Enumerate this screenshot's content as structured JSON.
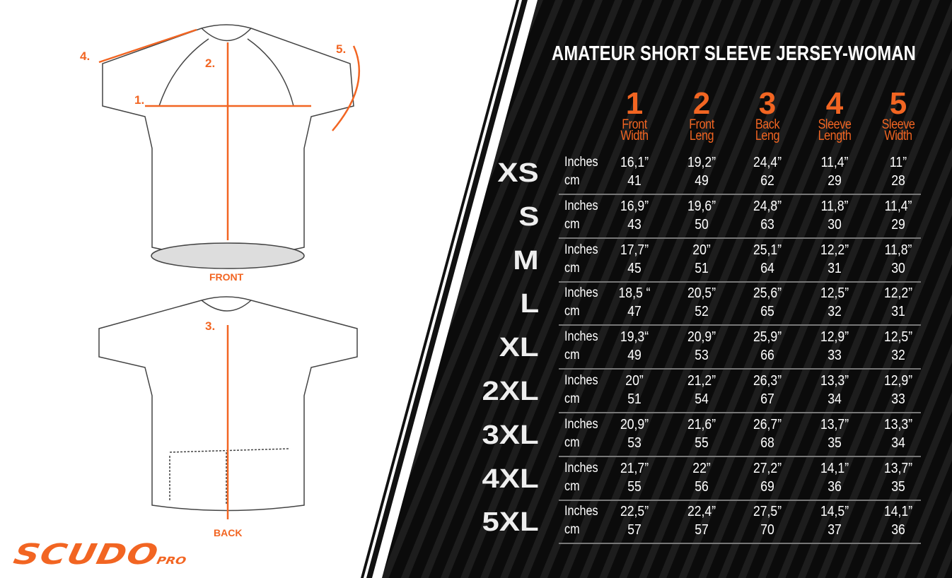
{
  "title": "AMATEUR SHORT SLEEVE JERSEY-WOMAN",
  "brand": {
    "name": "SCUDO",
    "suffix": "PRO"
  },
  "colors": {
    "accent": "#f26522",
    "panel": "#0b0b0b"
  },
  "diagram": {
    "front_label": "FRONT",
    "back_label": "BACK",
    "markers": [
      "1.",
      "2.",
      "3.",
      "4.",
      "5."
    ]
  },
  "columns": [
    {
      "num": "1",
      "label1": "Front",
      "label2": "Width"
    },
    {
      "num": "2",
      "label1": "Front",
      "label2": "Leng"
    },
    {
      "num": "3",
      "label1": "Back",
      "label2": "Leng"
    },
    {
      "num": "4",
      "label1": "Sleeve",
      "label2": "Length"
    },
    {
      "num": "5",
      "label1": "Sleeve",
      "label2": "Width"
    }
  ],
  "units": {
    "inches": "Inches",
    "cm": "cm"
  },
  "rows": [
    {
      "size": "XS",
      "inches": [
        "16,1”",
        "19,2”",
        "24,4”",
        "11,4”",
        "11”"
      ],
      "cm": [
        "41",
        "49",
        "62",
        "29",
        "28"
      ]
    },
    {
      "size": "S",
      "inches": [
        "16,9”",
        "19,6”",
        "24,8”",
        "11,8”",
        "11,4”"
      ],
      "cm": [
        "43",
        "50",
        "63",
        "30",
        "29"
      ]
    },
    {
      "size": "M",
      "inches": [
        "17,7”",
        "20”",
        "25,1”",
        "12,2”",
        "11,8”"
      ],
      "cm": [
        "45",
        "51",
        "64",
        "31",
        "30"
      ]
    },
    {
      "size": "L",
      "inches": [
        "18,5 “",
        "20,5”",
        "25,6”",
        "12,5”",
        "12,2”"
      ],
      "cm": [
        "47",
        "52",
        "65",
        "32",
        "31"
      ]
    },
    {
      "size": "XL",
      "inches": [
        "19,3“",
        "20,9”",
        "25,9”",
        "12,9”",
        "12,5”"
      ],
      "cm": [
        "49",
        "53",
        "66",
        "33",
        "32"
      ]
    },
    {
      "size": "2XL",
      "inches": [
        "20”",
        "21,2”",
        "26,3”",
        "13,3”",
        "12,9”"
      ],
      "cm": [
        "51",
        "54",
        "67",
        "34",
        "33"
      ]
    },
    {
      "size": "3XL",
      "inches": [
        "20,9”",
        "21,6”",
        "26,7”",
        "13,7”",
        "13,3”"
      ],
      "cm": [
        "53",
        "55",
        "68",
        "35",
        "34"
      ]
    },
    {
      "size": "4XL",
      "inches": [
        "21,7”",
        "22”",
        "27,2”",
        "14,1”",
        "13,7”"
      ],
      "cm": [
        "55",
        "56",
        "69",
        "36",
        "35"
      ]
    },
    {
      "size": "5XL",
      "inches": [
        "22,5”",
        "22,4”",
        "27,5”",
        "14,5”",
        "14,1”"
      ],
      "cm": [
        "57",
        "57",
        "70",
        "37",
        "36"
      ]
    }
  ]
}
